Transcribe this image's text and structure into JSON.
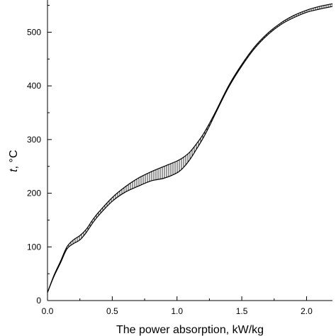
{
  "chart_data": {
    "type": "area",
    "title": "",
    "xlabel": "The power absorption, kW/kg",
    "ylabel_var": "t",
    "ylabel_unit": ", °C",
    "xlim": [
      0.0,
      2.2
    ],
    "ylim": [
      0,
      560
    ],
    "xticks": [
      "0.0",
      "0.5",
      "1.0",
      "1.5",
      "2.0"
    ],
    "xtick_values": [
      0.0,
      0.5,
      1.0,
      1.5,
      2.0
    ],
    "yticks": [
      "0",
      "100",
      "200",
      "300",
      "400",
      "500"
    ],
    "ytick_values": [
      0,
      100,
      200,
      300,
      400,
      500
    ],
    "grid": false,
    "legend": "none",
    "series": [
      {
        "name": "",
        "x": [
          0.0,
          0.05,
          0.1,
          0.15,
          0.2,
          0.25,
          0.3,
          0.35,
          0.4,
          0.5,
          0.6,
          0.7,
          0.8,
          0.9,
          1.0,
          1.05,
          1.1,
          1.15,
          1.2,
          1.25,
          1.3,
          1.4,
          1.5,
          1.6,
          1.7,
          1.8,
          1.9,
          2.0,
          2.1,
          2.2
        ],
        "values": [
          15,
          45,
          70,
          96,
          106,
          113,
          127,
          145,
          160,
          185,
          202,
          213,
          223,
          228,
          238,
          248,
          263,
          282,
          302,
          325,
          350,
          398,
          437,
          470,
          495,
          514,
          527,
          537,
          543,
          548
        ]
      },
      {
        "name": "",
        "x": [
          0.0,
          0.05,
          0.1,
          0.15,
          0.2,
          0.25,
          0.3,
          0.35,
          0.4,
          0.5,
          0.6,
          0.7,
          0.8,
          0.9,
          1.0,
          1.05,
          1.1,
          1.15,
          1.2,
          1.25,
          1.3,
          1.4,
          1.5,
          1.6,
          1.7,
          1.8,
          1.9,
          2.0,
          2.1,
          2.2
        ],
        "values": [
          15,
          47,
          73,
          100,
          113,
          121,
          133,
          151,
          166,
          192,
          212,
          228,
          240,
          250,
          260,
          267,
          277,
          292,
          309,
          330,
          353,
          401,
          440,
          473,
          498,
          517,
          531,
          541,
          548,
          553
        ]
      }
    ],
    "band_fill": "hatched",
    "colors": {
      "line": "#000000",
      "hatch": "#000000",
      "background": "#ffffff"
    }
  }
}
